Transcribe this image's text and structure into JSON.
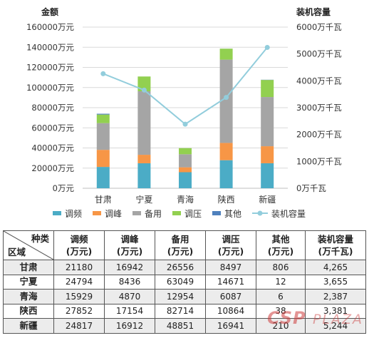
{
  "chart_data": {
    "type": "bar",
    "subtype": "stacked-bar-with-line",
    "left_axis_title": "金额",
    "right_axis_title": "装机容量",
    "categories": [
      "甘肃",
      "宁夏",
      "青海",
      "陕西",
      "新疆"
    ],
    "ylim_left": [
      0,
      160000
    ],
    "yticks_left": [
      "0万元",
      "20000万元",
      "40000万元",
      "60000万元",
      "80000万元",
      "100000万元",
      "120000万元",
      "140000万元",
      "160000万元"
    ],
    "ylim_right": [
      0,
      6000
    ],
    "yticks_right": [
      "0万千瓦",
      "1000万千瓦",
      "2000万千瓦",
      "3000万千瓦",
      "4000万千瓦",
      "5000万千瓦",
      "6000万千瓦"
    ],
    "grid": true,
    "legend_position": "bottom",
    "series": [
      {
        "name": "调频",
        "kind": "bar",
        "axis": "left",
        "color": "#4bacc6",
        "values": [
          21180,
          24794,
          15929,
          27852,
          24817
        ]
      },
      {
        "name": "调峰",
        "kind": "bar",
        "axis": "left",
        "color": "#f79646",
        "values": [
          16942,
          8436,
          4870,
          17154,
          16912
        ]
      },
      {
        "name": "备用",
        "kind": "bar",
        "axis": "left",
        "color": "#a5a5a5",
        "values": [
          26556,
          63049,
          12954,
          82714,
          48851
        ]
      },
      {
        "name": "调压",
        "kind": "bar",
        "axis": "left",
        "color": "#92d050",
        "values": [
          8497,
          14671,
          6087,
          10864,
          16941
        ]
      },
      {
        "name": "其他",
        "kind": "bar",
        "axis": "left",
        "color": "#4f81bd",
        "values": [
          806,
          12,
          6,
          38,
          210
        ]
      },
      {
        "name": "装机容量",
        "kind": "line",
        "axis": "right",
        "color": "#92cddc",
        "values": [
          4265,
          3655,
          2387,
          3381,
          5244
        ]
      }
    ]
  },
  "table": {
    "corner_top": "种类",
    "corner_bottom": "区域",
    "headers": [
      [
        "调频",
        "(万元)"
      ],
      [
        "调峰",
        "(万元)"
      ],
      [
        "备用",
        "(万元)"
      ],
      [
        "调压",
        "(万元)"
      ],
      [
        "其他",
        "(万元)"
      ],
      [
        "装机容量",
        "(万千瓦)"
      ]
    ],
    "rows": [
      {
        "region": "甘肃",
        "cells": [
          "21180",
          "16942",
          "26556",
          "8497",
          "806",
          "4,265"
        ]
      },
      {
        "region": "宁夏",
        "cells": [
          "24794",
          "8436",
          "63049",
          "14671",
          "12",
          "3,655"
        ]
      },
      {
        "region": "青海",
        "cells": [
          "15929",
          "4870",
          "12954",
          "6087",
          "6",
          "2,387"
        ]
      },
      {
        "region": "陕西",
        "cells": [
          "27852",
          "17154",
          "82714",
          "10864",
          "38",
          "3,381"
        ]
      },
      {
        "region": "新疆",
        "cells": [
          "24817",
          "16912",
          "48851",
          "16941",
          "210",
          "5,244"
        ]
      }
    ]
  },
  "watermark": {
    "text1": "CSP",
    "text2": "PLAZA"
  }
}
